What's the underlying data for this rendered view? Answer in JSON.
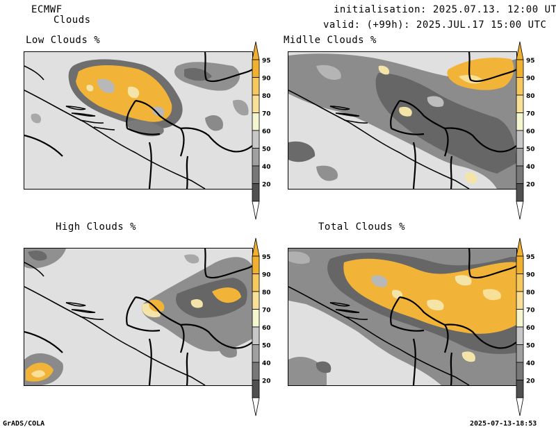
{
  "header": {
    "model": "ECMWF",
    "product": "Clouds",
    "initialisation": "initialisation: 2025.07.13. 12:00 UTC",
    "valid": "valid: (+99h): 2025.JUL.17 15:00 UTC"
  },
  "panels": [
    {
      "title": "Low Clouds %"
    },
    {
      "title": "Midlle Clouds %"
    },
    {
      "title": "High Clouds %"
    },
    {
      "title": "Total Clouds %"
    }
  ],
  "colorbar": {
    "levels": [
      "95",
      "90",
      "80",
      "70",
      "60",
      "50",
      "40",
      "20"
    ],
    "colors": [
      "#f0b030",
      "#f6c860",
      "#f8e098",
      "#f4f6d0",
      "#c8c8c8",
      "#a0a0a0",
      "#787878",
      "#505050"
    ]
  },
  "footer": {
    "left": "GrADS/COLA",
    "right": "2025-07-13-18:53"
  }
}
